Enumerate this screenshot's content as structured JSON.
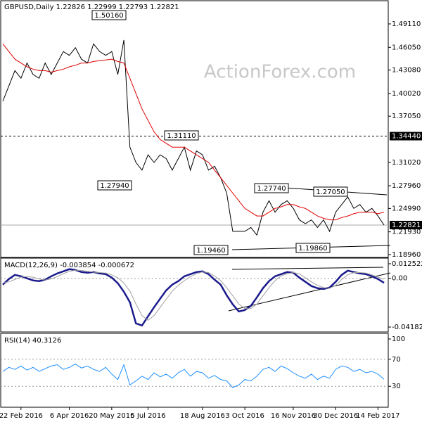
{
  "chart_data": [
    {
      "type": "line",
      "title": "GBPUSD,Daily  1.22826 1.22999 1.22793 1.22821",
      "watermark": "ActionForex.com",
      "categories": [
        null,
        null,
        null,
        "22 Feb 2016",
        null,
        null,
        null,
        null,
        null,
        null,
        null,
        "6 Apr 2016",
        null,
        null,
        null,
        null,
        null,
        null,
        "20 May 2016",
        null,
        null,
        null,
        null,
        null,
        "5 Jul 2016",
        null,
        null,
        null,
        null,
        null,
        null,
        null,
        null,
        "18 Aug 2016",
        null,
        null,
        null,
        null,
        null,
        null,
        "3 Oct 2016",
        null,
        null,
        null,
        null,
        null,
        null,
        null,
        "16 Nov 2016",
        null,
        null,
        null,
        null,
        null,
        null,
        "30 Dec 2016",
        null,
        null,
        null,
        null,
        null,
        null,
        "14 Feb 2017",
        null
      ],
      "series": [
        {
          "color": "#000000",
          "values": [
            1.39,
            1.41,
            1.43,
            1.42,
            1.44,
            1.425,
            1.42,
            1.44,
            1.425,
            1.44,
            1.455,
            1.45,
            1.46,
            1.445,
            1.44,
            1.465,
            1.455,
            1.45,
            1.455,
            1.425,
            1.47,
            1.33,
            1.31,
            1.3,
            1.32,
            1.31,
            1.32,
            1.315,
            1.3,
            1.315,
            1.33,
            1.3,
            1.325,
            1.32,
            1.3,
            1.305,
            1.29,
            1.27,
            1.22,
            1.22,
            1.22,
            1.225,
            1.215,
            1.245,
            1.26,
            1.245,
            1.255,
            1.26,
            1.25,
            1.235,
            1.23,
            1.235,
            1.225,
            1.235,
            1.22,
            1.245,
            1.255,
            1.265,
            1.25,
            1.255,
            1.245,
            1.25,
            1.24,
            1.22821
          ]
        },
        {
          "color": "#e00000",
          "values": [
            1.465,
            1.455,
            1.445,
            1.44,
            1.435,
            1.432,
            1.43,
            1.43,
            1.428,
            1.43,
            1.432,
            1.435,
            1.437,
            1.44,
            1.44,
            1.442,
            1.443,
            1.444,
            1.445,
            1.442,
            1.44,
            1.42,
            1.4,
            1.38,
            1.365,
            1.35,
            1.34,
            1.335,
            1.33,
            1.33,
            1.33,
            1.325,
            1.32,
            1.315,
            1.31,
            1.3,
            1.29,
            1.28,
            1.27,
            1.26,
            1.25,
            1.245,
            1.24,
            1.24,
            1.245,
            1.25,
            1.252,
            1.255,
            1.255,
            1.252,
            1.25,
            1.245,
            1.24,
            1.237,
            1.235,
            1.235,
            1.238,
            1.24,
            1.243,
            1.245,
            1.245,
            1.245,
            1.243,
            1.245
          ]
        }
      ],
      "ylim": [
        1.1868,
        1.5205
      ],
      "yticks": [
        {
          "value": 1.4911,
          "label": "1.49110"
        },
        {
          "value": 1.4605,
          "label": "1.46050"
        },
        {
          "value": 1.4308,
          "label": "1.43080"
        },
        {
          "value": 1.4002,
          "label": "1.40020"
        },
        {
          "value": 1.3705,
          "label": "1.37050"
        },
        {
          "value": 1.3102,
          "label": "1.31020"
        },
        {
          "value": 1.2796,
          "label": "1.27960"
        },
        {
          "value": 1.2499,
          "label": "1.24990"
        },
        {
          "value": 1.2193,
          "label": "1.21930"
        },
        {
          "value": 1.1896,
          "label": "1.18960"
        }
      ],
      "levels": [
        {
          "value": 1.3444,
          "label": "1.34440",
          "style": "dashed"
        },
        {
          "value": 1.22821,
          "label": "1.22821",
          "style": "solid"
        }
      ],
      "annotations": [
        "1.50160",
        "1.27940",
        "1.31110",
        "1.27740",
        "1.27050",
        "1.19460",
        "1.19860"
      ],
      "grid": false
    },
    {
      "type": "line",
      "title": "MACD(12,26,9) -0.003854 -0.000672",
      "series": [
        {
          "color": "#1a1a8c",
          "values": [
            -0.0054,
            -0.0006,
            0.003,
            0.0018,
            0,
            -0.0018,
            -0.0024,
            -0.0012,
            0.0018,
            0.0042,
            0.006,
            0.0079,
            0.0072,
            0.0054,
            0.0048,
            0.0054,
            0.0042,
            0.0036,
            0.0006,
            -0.0042,
            -0.0115,
            -0.0205,
            -0.0387,
            -0.0405,
            -0.0326,
            -0.0248,
            -0.0175,
            -0.0103,
            -0.0054,
            -0.0024,
            0.0018,
            0.0036,
            0.0054,
            0.006,
            0.0036,
            -0.0012,
            -0.0054,
            -0.0145,
            -0.0223,
            -0.0284,
            -0.0272,
            -0.0236,
            -0.0163,
            -0.0085,
            -0.0024,
            0.0018,
            0.0036,
            0.0054,
            0.0048,
            0.0006,
            -0.003,
            -0.0066,
            -0.0085,
            -0.0091,
            -0.0079,
            -0.003,
            0.003,
            0.0066,
            0.0054,
            0.0042,
            0.0036,
            0.0018,
            -0.0006,
            -0.003854
          ]
        },
        {
          "color": "#a0a0a0",
          "values": [
            -0.004,
            -0.003,
            -0.001,
            0.001,
            0.0015,
            0.001,
            -0.0005,
            -0.0015,
            -0.0005,
            0.0015,
            0.004,
            0.006,
            0.007,
            0.0068,
            0.006,
            0.0053,
            0.005,
            0.0045,
            0.003,
            0.0005,
            -0.004,
            -0.011,
            -0.022,
            -0.032,
            -0.036,
            -0.032,
            -0.025,
            -0.018,
            -0.011,
            -0.006,
            -0.002,
            0.0015,
            0.004,
            0.0055,
            0.005,
            0.002,
            -0.002,
            -0.008,
            -0.015,
            -0.022,
            -0.026,
            -0.026,
            -0.022,
            -0.015,
            -0.008,
            -0.002,
            0.002,
            0.004,
            0.005,
            0.004,
            0.0005,
            -0.003,
            -0.006,
            -0.008,
            -0.0085,
            -0.006,
            -0.001,
            0.003,
            0.005,
            0.005,
            0.0045,
            0.003,
            0.001,
            -0.000672
          ]
        }
      ],
      "ylim": [
        -0.041823,
        0.012522
      ],
      "yticks": [
        0.012522,
        {
          "value": 0,
          "label": "0.00"
        },
        -0.041823
      ],
      "grid": true
    },
    {
      "type": "line",
      "title": "RSI(14) 40.3126",
      "series": [
        {
          "color": "#1e90ff",
          "values": [
            52,
            58,
            55,
            60,
            54,
            58,
            52,
            56,
            60,
            62,
            55,
            58,
            63,
            57,
            60,
            55,
            52,
            58,
            48,
            40,
            62,
            32,
            38,
            45,
            40,
            50,
            44,
            48,
            42,
            50,
            55,
            45,
            52,
            50,
            42,
            46,
            40,
            38,
            28,
            32,
            40,
            38,
            45,
            55,
            58,
            52,
            60,
            56,
            50,
            45,
            42,
            48,
            40,
            45,
            42,
            55,
            60,
            58,
            52,
            55,
            50,
            52,
            48,
            40.3126
          ]
        }
      ],
      "ylim": [
        0,
        100
      ],
      "yticks": [
        100,
        70,
        30
      ],
      "grid": true
    }
  ]
}
